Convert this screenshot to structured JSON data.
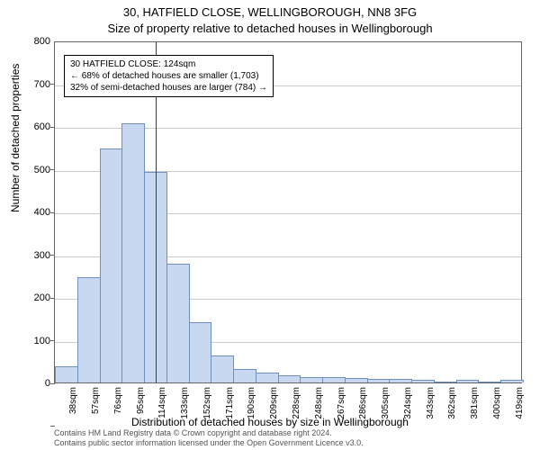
{
  "chart": {
    "type": "histogram",
    "title_main": "30, HATFIELD CLOSE, WELLINGBOROUGH, NN8 3FG",
    "title_sub": "Size of property relative to detached houses in Wellingborough",
    "ylabel": "Number of detached properties",
    "xlabel": "Distribution of detached houses by size in Wellingborough",
    "background_color": "#ffffff",
    "border_color": "#666666",
    "grid_color": "#cccccc",
    "bar_fill": "#c8d8f0",
    "bar_stroke": "#7090c0",
    "marker_color": "#cc0000",
    "marker_x_value": 124,
    "title_fontsize": 13,
    "label_fontsize": 12,
    "tick_fontsize": 11,
    "ylim": [
      0,
      800
    ],
    "ytick_step": 100,
    "yticks": [
      0,
      100,
      200,
      300,
      400,
      500,
      600,
      700,
      800
    ],
    "xtick_labels": [
      "38sqm",
      "57sqm",
      "76sqm",
      "95sqm",
      "114sqm",
      "133sqm",
      "152sqm",
      "171sqm",
      "190sqm",
      "209sqm",
      "228sqm",
      "248sqm",
      "267sqm",
      "286sqm",
      "305sqm",
      "324sqm",
      "343sqm",
      "362sqm",
      "381sqm",
      "400sqm",
      "419sqm"
    ],
    "values": [
      35,
      245,
      545,
      605,
      490,
      275,
      140,
      62,
      30,
      22,
      15,
      10,
      10,
      8,
      7,
      6,
      5,
      0,
      4,
      0,
      4
    ],
    "n_bars": 21,
    "annotation": {
      "line1": "30 HATFIELD CLOSE: 124sqm",
      "line2": "← 68% of detached houses are smaller (1,703)",
      "line3": "32% of semi-detached houses are larger (784) →"
    },
    "footer": {
      "line1": "Contains HM Land Registry data © Crown copyright and database right 2024.",
      "line2": "Contains public sector information licensed under the Open Government Licence v3.0."
    }
  }
}
